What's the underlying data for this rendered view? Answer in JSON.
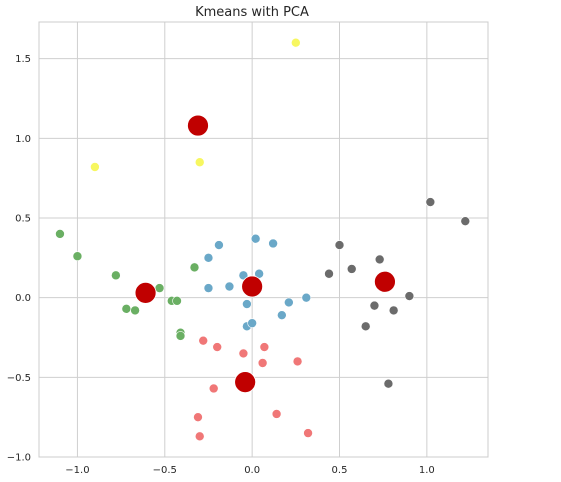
{
  "chart_data": {
    "type": "scatter",
    "title": "Kmeans with PCA",
    "xlabel": "",
    "ylabel": "",
    "xlim": [
      -1.22,
      1.35
    ],
    "ylim": [
      -1.0,
      1.73
    ],
    "grid": true,
    "x_ticks": [
      -1.0,
      -0.5,
      0.0,
      0.5,
      1.0
    ],
    "x_tick_labels": [
      "−1.0",
      "−0.5",
      "0.0",
      "0.5",
      "1.0"
    ],
    "y_ticks": [
      -1.0,
      -0.5,
      0.0,
      0.5,
      1.0,
      1.5
    ],
    "y_tick_labels": [
      "−1.0",
      "−0.5",
      "0.0",
      "0.5",
      "1.0",
      "1.5"
    ],
    "series": [
      {
        "color": "#f7f760",
        "points": [
          [
            0.25,
            1.6
          ],
          [
            -0.3,
            0.85
          ],
          [
            -0.9,
            0.82
          ]
        ]
      },
      {
        "color": "#6aaf63",
        "points": [
          [
            -1.1,
            0.4
          ],
          [
            -1.0,
            0.26
          ],
          [
            -0.78,
            0.14
          ],
          [
            -0.72,
            -0.07
          ],
          [
            -0.67,
            -0.08
          ],
          [
            -0.53,
            0.06
          ],
          [
            -0.46,
            -0.02
          ],
          [
            -0.43,
            -0.02
          ],
          [
            -0.41,
            -0.22
          ],
          [
            -0.41,
            -0.24
          ],
          [
            -0.33,
            0.19
          ]
        ]
      },
      {
        "color": "#6aa8c8",
        "points": [
          [
            -0.25,
            0.25
          ],
          [
            -0.19,
            0.33
          ],
          [
            -0.13,
            0.07
          ],
          [
            -0.25,
            0.06
          ],
          [
            -0.05,
            0.14
          ],
          [
            0.02,
            0.37
          ],
          [
            0.12,
            0.34
          ],
          [
            0.04,
            0.15
          ],
          [
            -0.03,
            -0.04
          ],
          [
            -0.03,
            -0.18
          ],
          [
            0.0,
            -0.16
          ],
          [
            0.17,
            -0.11
          ],
          [
            0.21,
            -0.03
          ],
          [
            0.31,
            0.0
          ]
        ]
      },
      {
        "color": "#f07777",
        "points": [
          [
            -0.28,
            -0.27
          ],
          [
            -0.2,
            -0.31
          ],
          [
            -0.05,
            -0.35
          ],
          [
            0.07,
            -0.31
          ],
          [
            0.06,
            -0.41
          ],
          [
            0.26,
            -0.4
          ],
          [
            -0.22,
            -0.57
          ],
          [
            0.14,
            -0.73
          ],
          [
            -0.31,
            -0.75
          ],
          [
            0.32,
            -0.85
          ],
          [
            -0.3,
            -0.87
          ]
        ]
      },
      {
        "color": "#6b6b6b",
        "points": [
          [
            1.02,
            0.6
          ],
          [
            1.22,
            0.48
          ],
          [
            0.5,
            0.33
          ],
          [
            0.44,
            0.15
          ],
          [
            0.57,
            0.18
          ],
          [
            0.73,
            0.24
          ],
          [
            0.7,
            -0.05
          ],
          [
            0.65,
            -0.18
          ],
          [
            0.81,
            -0.08
          ],
          [
            0.9,
            0.01
          ],
          [
            0.78,
            -0.54
          ]
        ]
      }
    ],
    "centroids": {
      "color": "#c00000",
      "points": [
        [
          -0.31,
          1.08
        ],
        [
          -0.61,
          0.03
        ],
        [
          0.0,
          0.07
        ],
        [
          0.76,
          0.1
        ],
        [
          -0.04,
          -0.53
        ]
      ]
    }
  }
}
